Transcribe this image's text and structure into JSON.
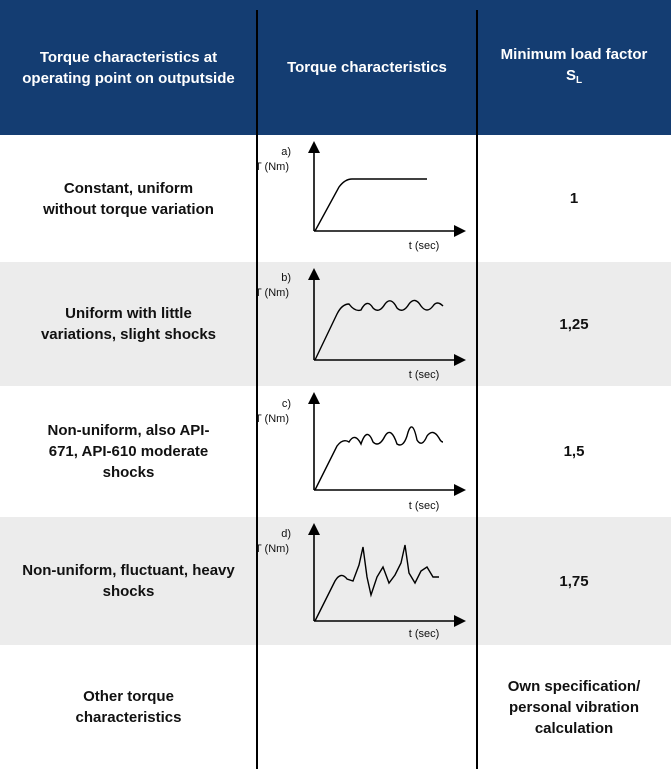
{
  "table": {
    "headers": {
      "col1": "Torque characteristics at operating point on outputside",
      "col2": "Torque characteristics",
      "col3_main": "Minimum load factor S",
      "col3_sub": "L"
    },
    "rows": [
      {
        "description": "Constant, uniform without torque variation",
        "curve_label": "a)",
        "load_factor": "1"
      },
      {
        "description": "Uniform with little variations, slight shocks",
        "curve_label": "b)",
        "load_factor": "1,25"
      },
      {
        "description": "Non-uniform, also API-671, API-610 moderate shocks",
        "curve_label": "c)",
        "load_factor": "1,5"
      },
      {
        "description": "Non-uniform, fluctuant, heavy shocks",
        "curve_label": "d)",
        "load_factor": "1,75"
      },
      {
        "description": "Other torque characteristics",
        "curve_label": "",
        "load_factor": "Own specification/ personal vibration calculation"
      }
    ],
    "axis": {
      "y_label": "T (Nm)",
      "x_label": "t (sec)"
    }
  }
}
